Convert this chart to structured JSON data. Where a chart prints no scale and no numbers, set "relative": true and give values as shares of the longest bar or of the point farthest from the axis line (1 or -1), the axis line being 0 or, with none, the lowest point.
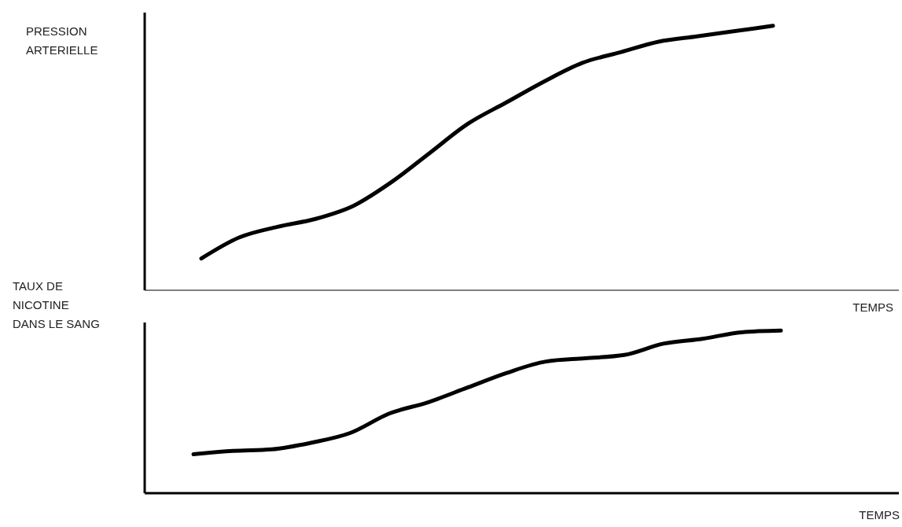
{
  "chart_data": [
    {
      "type": "line",
      "relative": true,
      "ylabel": "PRESSION\nARTERIELLE",
      "xlabel": "TEMPS",
      "categories": [
        null,
        null,
        null,
        null,
        null,
        null,
        null,
        null,
        null,
        null,
        null,
        null,
        null,
        null,
        null,
        null
      ],
      "series": [
        {
          "color": "#000000",
          "values": [
            0.12,
            0.2,
            0.24,
            0.27,
            0.32,
            0.41,
            0.52,
            0.63,
            0.71,
            0.79,
            0.86,
            0.9,
            0.94,
            0.96,
            0.98,
            1
          ]
        }
      ]
    },
    {
      "type": "line",
      "relative": true,
      "ylabel": "TAUX DE\nNICOTINE\nDANS LE SANG",
      "xlabel": "TEMPS",
      "categories": [
        null,
        null,
        null,
        null,
        null,
        null,
        null,
        null,
        null,
        null,
        null,
        null,
        null,
        null,
        null,
        null
      ],
      "series": [
        {
          "color": "#000000",
          "values": [
            0.24,
            0.26,
            0.27,
            0.31,
            0.37,
            0.49,
            0.56,
            0.65,
            0.74,
            0.81,
            0.83,
            0.85,
            0.92,
            0.95,
            0.99,
            1
          ]
        }
      ]
    }
  ]
}
